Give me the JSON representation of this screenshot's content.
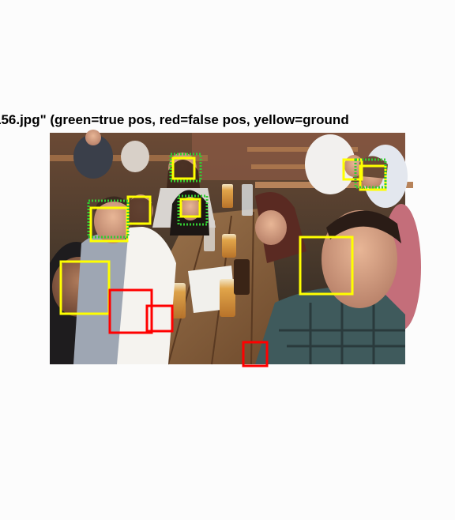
{
  "figure": {
    "title": "156.jpg\" (green=true pos, red=false pos, yellow=ground",
    "legend_colors": {
      "true_pos": "#33cc33",
      "false_pos": "#ff0000",
      "ground_truth": "#ffff00"
    }
  },
  "photo": {
    "subject": "group of people seated at an outdoor beer garden table with glasses of beer",
    "box_counts": {
      "ground_truth": 9,
      "true_positive": 5,
      "false_positive": 3
    }
  }
}
